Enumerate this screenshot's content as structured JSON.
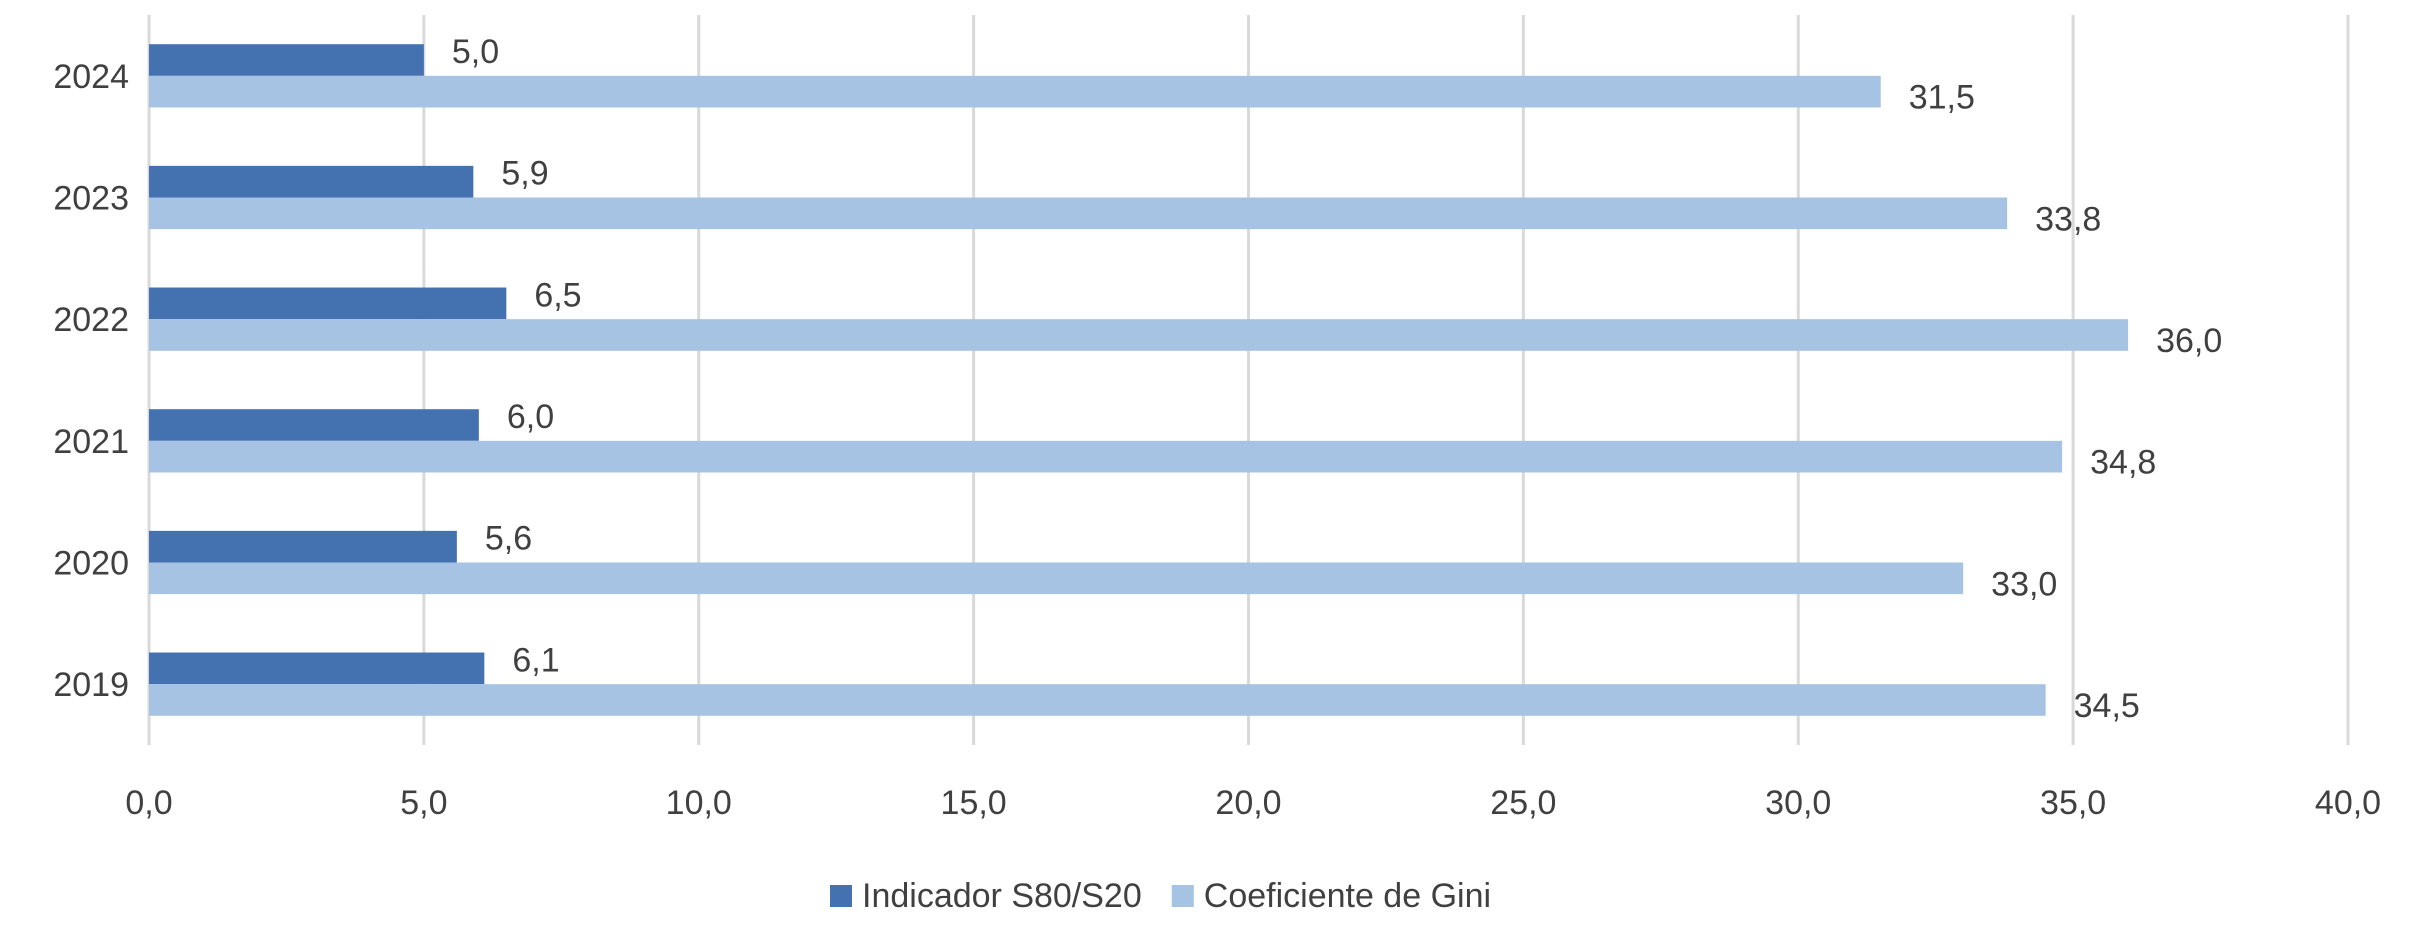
{
  "chart_data": {
    "type": "hbar",
    "categories": [
      "2019",
      "2020",
      "2021",
      "2022",
      "2023",
      "2024"
    ],
    "series": [
      {
        "name": "Indicador S80/S20",
        "color": "#4472b0",
        "values": [
          6.1,
          5.6,
          6.0,
          6.5,
          5.9,
          5.0
        ],
        "value_labels": [
          "6,1",
          "5,6",
          "6,0",
          "6,5",
          "5,9",
          "5,0"
        ]
      },
      {
        "name": "Coeficiente de Gini",
        "color": "#a6c3e3",
        "values": [
          34.5,
          33.0,
          34.8,
          36.0,
          33.8,
          31.5
        ],
        "value_labels": [
          "34,5",
          "33,0",
          "34,8",
          "36,0",
          "33,8",
          "31,5"
        ]
      }
    ],
    "xlim": [
      0,
      40
    ],
    "xticks": [
      {
        "value": 0,
        "label": "0,0"
      },
      {
        "value": 5,
        "label": "5,0"
      },
      {
        "value": 10,
        "label": "10,0"
      },
      {
        "value": 15,
        "label": "15,0"
      },
      {
        "value": 20,
        "label": "20,0"
      },
      {
        "value": 25,
        "label": "25,0"
      },
      {
        "value": 30,
        "label": "30,0"
      },
      {
        "value": 35,
        "label": "35,0"
      },
      {
        "value": 40,
        "label": "40,0"
      }
    ],
    "grid": true,
    "legend": "bottom"
  }
}
